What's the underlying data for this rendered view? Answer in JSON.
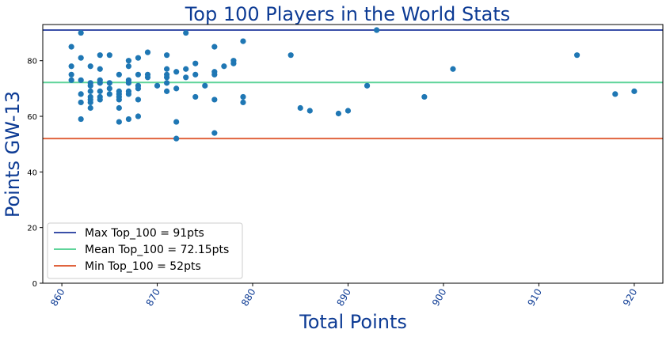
{
  "chart_data": {
    "type": "scatter",
    "title": "Top 100 Players in the World Stats",
    "xlabel": "Total Points",
    "ylabel": "Points GW-13",
    "xlim": [
      858,
      923
    ],
    "ylim": [
      0,
      93
    ],
    "x_ticks": [
      860,
      870,
      880,
      890,
      900,
      910,
      920
    ],
    "y_ticks": [
      0,
      20,
      40,
      60,
      80
    ],
    "grid": false,
    "legend_position": "lower-left",
    "colors": {
      "title_text": "#0d3b94",
      "points": "#1f77b4",
      "max_line": "#3a4fa8",
      "mean_line": "#5fd49a",
      "min_line": "#e0643f"
    },
    "reference_lines": [
      {
        "label": "Max Top_100 = 91pts",
        "y": 91,
        "color": "#3a4fa8"
      },
      {
        "label": "Mean Top_100 = 72.15pts",
        "y": 72.15,
        "color": "#5fd49a"
      },
      {
        "label": "Min Top_100 = 52pts",
        "y": 52,
        "color": "#e0643f"
      }
    ],
    "points": [
      [
        861,
        85
      ],
      [
        861,
        78
      ],
      [
        861,
        75
      ],
      [
        861,
        73
      ],
      [
        862,
        90
      ],
      [
        862,
        81
      ],
      [
        862,
        73
      ],
      [
        862,
        68
      ],
      [
        862,
        65
      ],
      [
        862,
        59
      ],
      [
        863,
        78
      ],
      [
        863,
        72
      ],
      [
        863,
        71
      ],
      [
        863,
        69
      ],
      [
        863,
        67
      ],
      [
        863,
        66
      ],
      [
        863,
        65
      ],
      [
        863,
        63
      ],
      [
        864,
        82
      ],
      [
        864,
        77
      ],
      [
        864,
        73
      ],
      [
        864,
        72
      ],
      [
        864,
        69
      ],
      [
        864,
        67
      ],
      [
        864,
        66
      ],
      [
        865,
        82
      ],
      [
        865,
        72
      ],
      [
        865,
        70
      ],
      [
        865,
        68
      ],
      [
        866,
        75
      ],
      [
        866,
        69
      ],
      [
        866,
        68
      ],
      [
        866,
        67
      ],
      [
        866,
        66
      ],
      [
        866,
        63
      ],
      [
        866,
        58
      ],
      [
        867,
        80
      ],
      [
        867,
        78
      ],
      [
        867,
        73
      ],
      [
        867,
        72
      ],
      [
        867,
        69
      ],
      [
        867,
        68
      ],
      [
        867,
        59
      ],
      [
        868,
        81
      ],
      [
        868,
        75
      ],
      [
        868,
        71
      ],
      [
        868,
        70
      ],
      [
        868,
        66
      ],
      [
        868,
        60
      ],
      [
        869,
        83
      ],
      [
        869,
        75
      ],
      [
        869,
        74
      ],
      [
        870,
        71
      ],
      [
        871,
        82
      ],
      [
        871,
        77
      ],
      [
        871,
        75
      ],
      [
        871,
        74
      ],
      [
        871,
        72
      ],
      [
        871,
        69
      ],
      [
        872,
        76
      ],
      [
        872,
        70
      ],
      [
        872,
        58
      ],
      [
        872,
        52
      ],
      [
        873,
        90
      ],
      [
        873,
        77
      ],
      [
        873,
        74
      ],
      [
        874,
        79
      ],
      [
        874,
        75
      ],
      [
        874,
        67
      ],
      [
        875,
        71
      ],
      [
        876,
        85
      ],
      [
        876,
        76
      ],
      [
        876,
        75
      ],
      [
        876,
        66
      ],
      [
        876,
        54
      ],
      [
        877,
        78
      ],
      [
        878,
        80
      ],
      [
        878,
        79
      ],
      [
        879,
        87
      ],
      [
        879,
        67
      ],
      [
        879,
        65
      ],
      [
        884,
        82
      ],
      [
        885,
        63
      ],
      [
        886,
        62
      ],
      [
        889,
        61
      ],
      [
        890,
        62
      ],
      [
        892,
        71
      ],
      [
        893,
        91
      ],
      [
        898,
        67
      ],
      [
        901,
        77
      ],
      [
        914,
        82
      ],
      [
        918,
        68
      ],
      [
        920,
        69
      ]
    ]
  }
}
